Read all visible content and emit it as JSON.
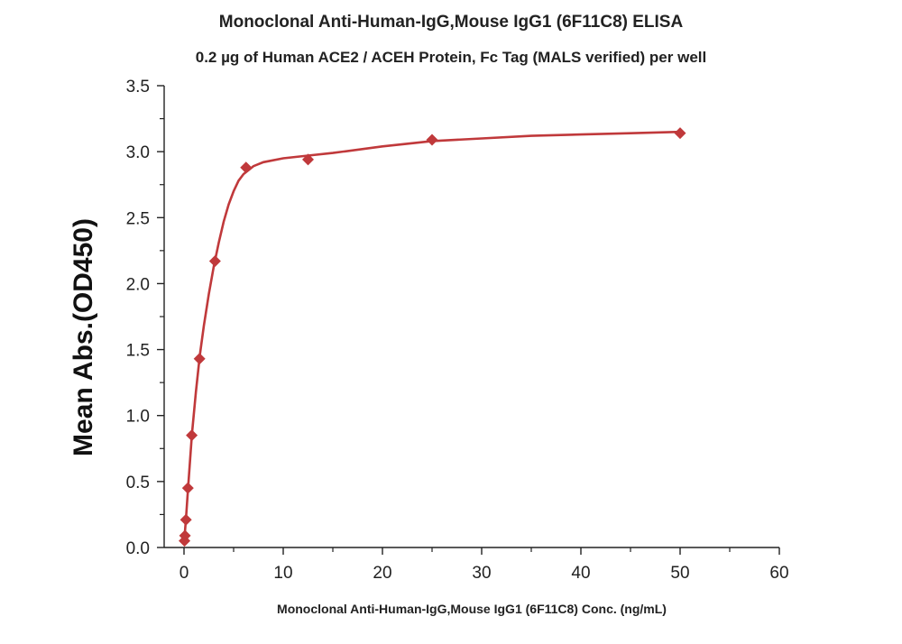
{
  "chart_data": {
    "type": "scatter",
    "title": "Monoclonal Anti-Human-IgG,Mouse IgG1 (6F11C8) ELISA",
    "subtitle": "0.2 µg of Human ACE2 / ACEH Protein, Fc Tag (MALS verified) per well",
    "xlabel": "Monoclonal Anti-Human-IgG,Mouse IgG1 (6F11C8) Conc. (ng/mL)",
    "ylabel": "Mean Abs.(OD450)",
    "xlim": [
      -2,
      60
    ],
    "ylim": [
      0,
      3.5
    ],
    "x_ticks": [
      0,
      10,
      20,
      30,
      40,
      50,
      60
    ],
    "y_ticks": [
      0.0,
      0.5,
      1.0,
      1.5,
      2.0,
      2.5,
      3.0,
      3.5
    ],
    "x_tick_labels": [
      "0",
      "10",
      "20",
      "30",
      "40",
      "50",
      "60"
    ],
    "y_tick_labels": [
      "0.0",
      "0.5",
      "1.0",
      "1.5",
      "2.0",
      "2.5",
      "3.0",
      "3.5"
    ],
    "grid": false,
    "legend": "none",
    "color": "#c0393b",
    "marker": "diamond",
    "x": [
      0.049,
      0.098,
      0.195,
      0.391,
      0.781,
      1.563,
      3.125,
      6.25,
      12.5,
      25,
      50
    ],
    "y": [
      0.05,
      0.09,
      0.21,
      0.45,
      0.85,
      1.43,
      2.17,
      2.88,
      2.94,
      3.09,
      3.14
    ],
    "fit_curve": [
      [
        0,
        0.03
      ],
      [
        0.2,
        0.22
      ],
      [
        0.4,
        0.44
      ],
      [
        0.8,
        0.86
      ],
      [
        1.2,
        1.18
      ],
      [
        1.6,
        1.46
      ],
      [
        2.0,
        1.68
      ],
      [
        2.5,
        1.92
      ],
      [
        3.0,
        2.13
      ],
      [
        3.5,
        2.31
      ],
      [
        4.0,
        2.47
      ],
      [
        4.5,
        2.6
      ],
      [
        5.0,
        2.7
      ],
      [
        5.5,
        2.78
      ],
      [
        6.0,
        2.83
      ],
      [
        7.0,
        2.89
      ],
      [
        8.0,
        2.92
      ],
      [
        10.0,
        2.95
      ],
      [
        12.5,
        2.97
      ],
      [
        15.0,
        2.99
      ],
      [
        20.0,
        3.04
      ],
      [
        25.0,
        3.08
      ],
      [
        30.0,
        3.1
      ],
      [
        35.0,
        3.12
      ],
      [
        40.0,
        3.13
      ],
      [
        45.0,
        3.14
      ],
      [
        50.0,
        3.15
      ]
    ]
  }
}
